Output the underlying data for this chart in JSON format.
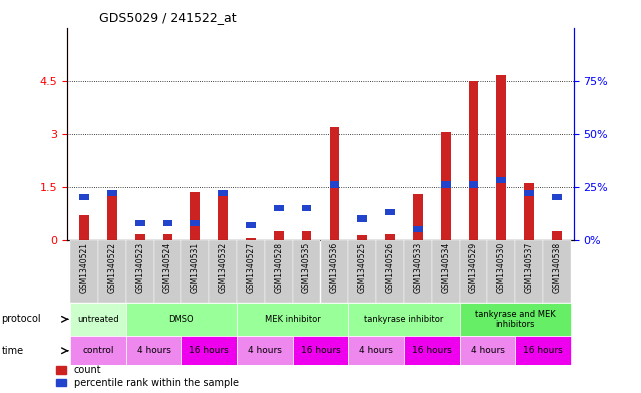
{
  "title": "GDS5029 / 241522_at",
  "samples": [
    "GSM1340521",
    "GSM1340522",
    "GSM1340523",
    "GSM1340524",
    "GSM1340531",
    "GSM1340532",
    "GSM1340527",
    "GSM1340528",
    "GSM1340535",
    "GSM1340536",
    "GSM1340525",
    "GSM1340526",
    "GSM1340533",
    "GSM1340534",
    "GSM1340529",
    "GSM1340530",
    "GSM1340537",
    "GSM1340538"
  ],
  "red_values": [
    0.7,
    1.4,
    0.15,
    0.15,
    1.35,
    1.3,
    0.05,
    0.25,
    0.25,
    3.2,
    0.12,
    0.15,
    1.3,
    3.05,
    4.5,
    4.65,
    1.6,
    0.25
  ],
  "blue_values_pct": [
    20,
    22,
    8,
    8,
    8,
    22,
    7,
    15,
    15,
    26,
    10,
    13,
    5,
    26,
    26,
    28,
    22,
    20
  ],
  "ylim_left": [
    0,
    6
  ],
  "ylim_right": [
    0,
    100
  ],
  "yticks_left": [
    0,
    1.5,
    3.0,
    4.5
  ],
  "yticks_right": [
    0,
    25,
    50,
    75
  ],
  "ytick_left_labels": [
    "0",
    "1.5",
    "3",
    "4.5"
  ],
  "ytick_right_labels": [
    "0",
    "25",
    "50",
    "75"
  ],
  "protocols": [
    {
      "label": "untreated",
      "start": 0,
      "end": 2,
      "color": "#ccffcc"
    },
    {
      "label": "DMSO",
      "start": 2,
      "end": 6,
      "color": "#99ff99"
    },
    {
      "label": "MEK inhibitor",
      "start": 6,
      "end": 10,
      "color": "#99ff99"
    },
    {
      "label": "tankyrase inhibitor",
      "start": 10,
      "end": 14,
      "color": "#99ff99"
    },
    {
      "label": "tankyrase and MEK\ninhibitors",
      "start": 14,
      "end": 18,
      "color": "#66ee66"
    }
  ],
  "times": [
    {
      "label": "control",
      "start": 0,
      "end": 2,
      "color": "#ee88ee"
    },
    {
      "label": "4 hours",
      "start": 2,
      "end": 4,
      "color": "#ee88ee"
    },
    {
      "label": "16 hours",
      "start": 4,
      "end": 6,
      "color": "#ee00ee"
    },
    {
      "label": "4 hours",
      "start": 6,
      "end": 8,
      "color": "#ee88ee"
    },
    {
      "label": "16 hours",
      "start": 8,
      "end": 10,
      "color": "#ee00ee"
    },
    {
      "label": "4 hours",
      "start": 10,
      "end": 12,
      "color": "#ee88ee"
    },
    {
      "label": "16 hours",
      "start": 12,
      "end": 14,
      "color": "#ee00ee"
    },
    {
      "label": "4 hours",
      "start": 14,
      "end": 16,
      "color": "#ee88ee"
    },
    {
      "label": "16 hours",
      "start": 16,
      "end": 18,
      "color": "#ee00ee"
    }
  ],
  "red_color": "#cc2222",
  "blue_color": "#2244cc",
  "bg_color": "#ffffff"
}
